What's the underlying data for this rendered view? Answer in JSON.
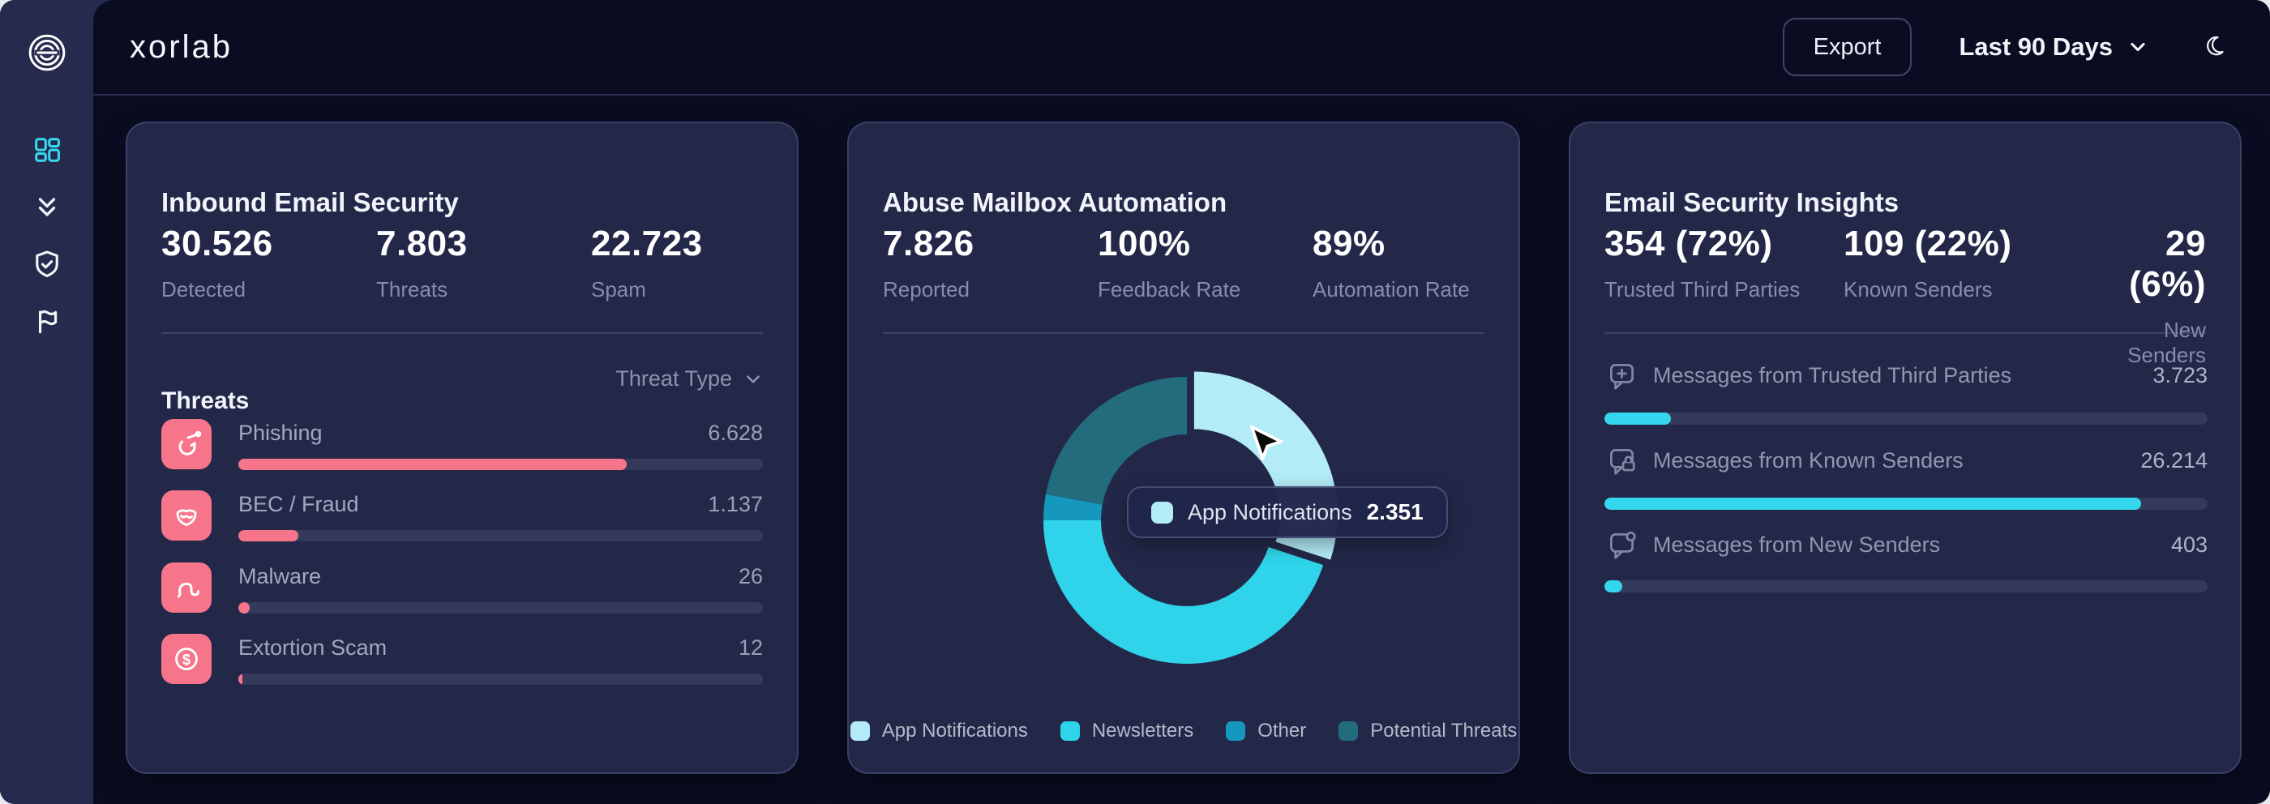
{
  "topbar": {
    "logo": "xorlab",
    "export_label": "Export",
    "date_range": "Last 90 Days"
  },
  "sidebar": {
    "items": [
      {
        "icon": "dashboard-grid",
        "active": true
      },
      {
        "icon": "double-chevron-down",
        "active": false
      },
      {
        "icon": "shield-check",
        "active": false
      },
      {
        "icon": "flag",
        "active": false
      }
    ]
  },
  "colors": {
    "pink_accent": "#f7758b",
    "cyan_accent": "#35d7ee",
    "card_bg": "#232849",
    "page_bg": "#0a0d22"
  },
  "inbound_card": {
    "title": "Inbound Email Security",
    "stats": [
      {
        "value": "30.526",
        "label": "Detected"
      },
      {
        "value": "7.803",
        "label": "Threats"
      },
      {
        "value": "22.723",
        "label": "Spam"
      }
    ],
    "section_title": "Threats",
    "filter_label": "Threat Type",
    "threats": [
      {
        "icon": "fish-hook",
        "label": "Phishing",
        "value": "6.628",
        "fill_pct": 74
      },
      {
        "icon": "mask",
        "label": "BEC / Fraud",
        "value": "1.137",
        "fill_pct": 11.5
      },
      {
        "icon": "worm",
        "label": "Malware",
        "value": "26",
        "fill_pct": 2.2
      },
      {
        "icon": "dollar-circle",
        "label": "Extortion Scam",
        "value": "12",
        "fill_pct": 0.8
      }
    ]
  },
  "abuse_card": {
    "title": "Abuse Mailbox Automation",
    "stats": [
      {
        "value": "7.826",
        "label": "Reported"
      },
      {
        "value": "100%",
        "label": "Feedback Rate"
      },
      {
        "value": "89%",
        "label": "Automation Rate"
      }
    ],
    "tooltip": {
      "label": "App Notifications",
      "value": "2.351"
    }
  },
  "insights_card": {
    "title": "Email Security Insights",
    "stats": [
      {
        "value": "354 (72%)",
        "label": "Trusted Third Parties"
      },
      {
        "value": "109 (22%)",
        "label": "Known Senders"
      },
      {
        "value": "29 (6%)",
        "label": "New Senders"
      }
    ],
    "rows": [
      {
        "icon": "message-plus",
        "label": "Messages from Trusted Third Parties",
        "value": "3.723",
        "fill_pct": 11
      },
      {
        "icon": "message-lock",
        "label": "Messages from Known Senders",
        "value": "26.214",
        "fill_pct": 89
      },
      {
        "icon": "message-new",
        "label": "Messages from New Senders",
        "value": "403",
        "fill_pct": 3
      }
    ]
  },
  "chart_data": {
    "type": "pie",
    "title": "Abuse Mailbox Automation — reported message categories (donut)",
    "total_reported": 7826,
    "highlighted_segment": "App Notifications",
    "segments": [
      {
        "label": "App Notifications",
        "value": 2351,
        "color": "#b3ecf7",
        "exploded": true,
        "source": "shown in tooltip"
      },
      {
        "label": "Newsletters",
        "value": 3519,
        "color": "#2fd4ea",
        "source": "estimated from arc ≈45%"
      },
      {
        "label": "Other",
        "value": 228,
        "color": "#1697bd",
        "source": "estimated from arc ≈3%"
      },
      {
        "label": "Potential Threats",
        "value": 1728,
        "color": "#236c7e",
        "source": "estimated from arc ≈22%"
      }
    ],
    "legend_position": "bottom",
    "inner_radius_ratio": 0.6
  }
}
